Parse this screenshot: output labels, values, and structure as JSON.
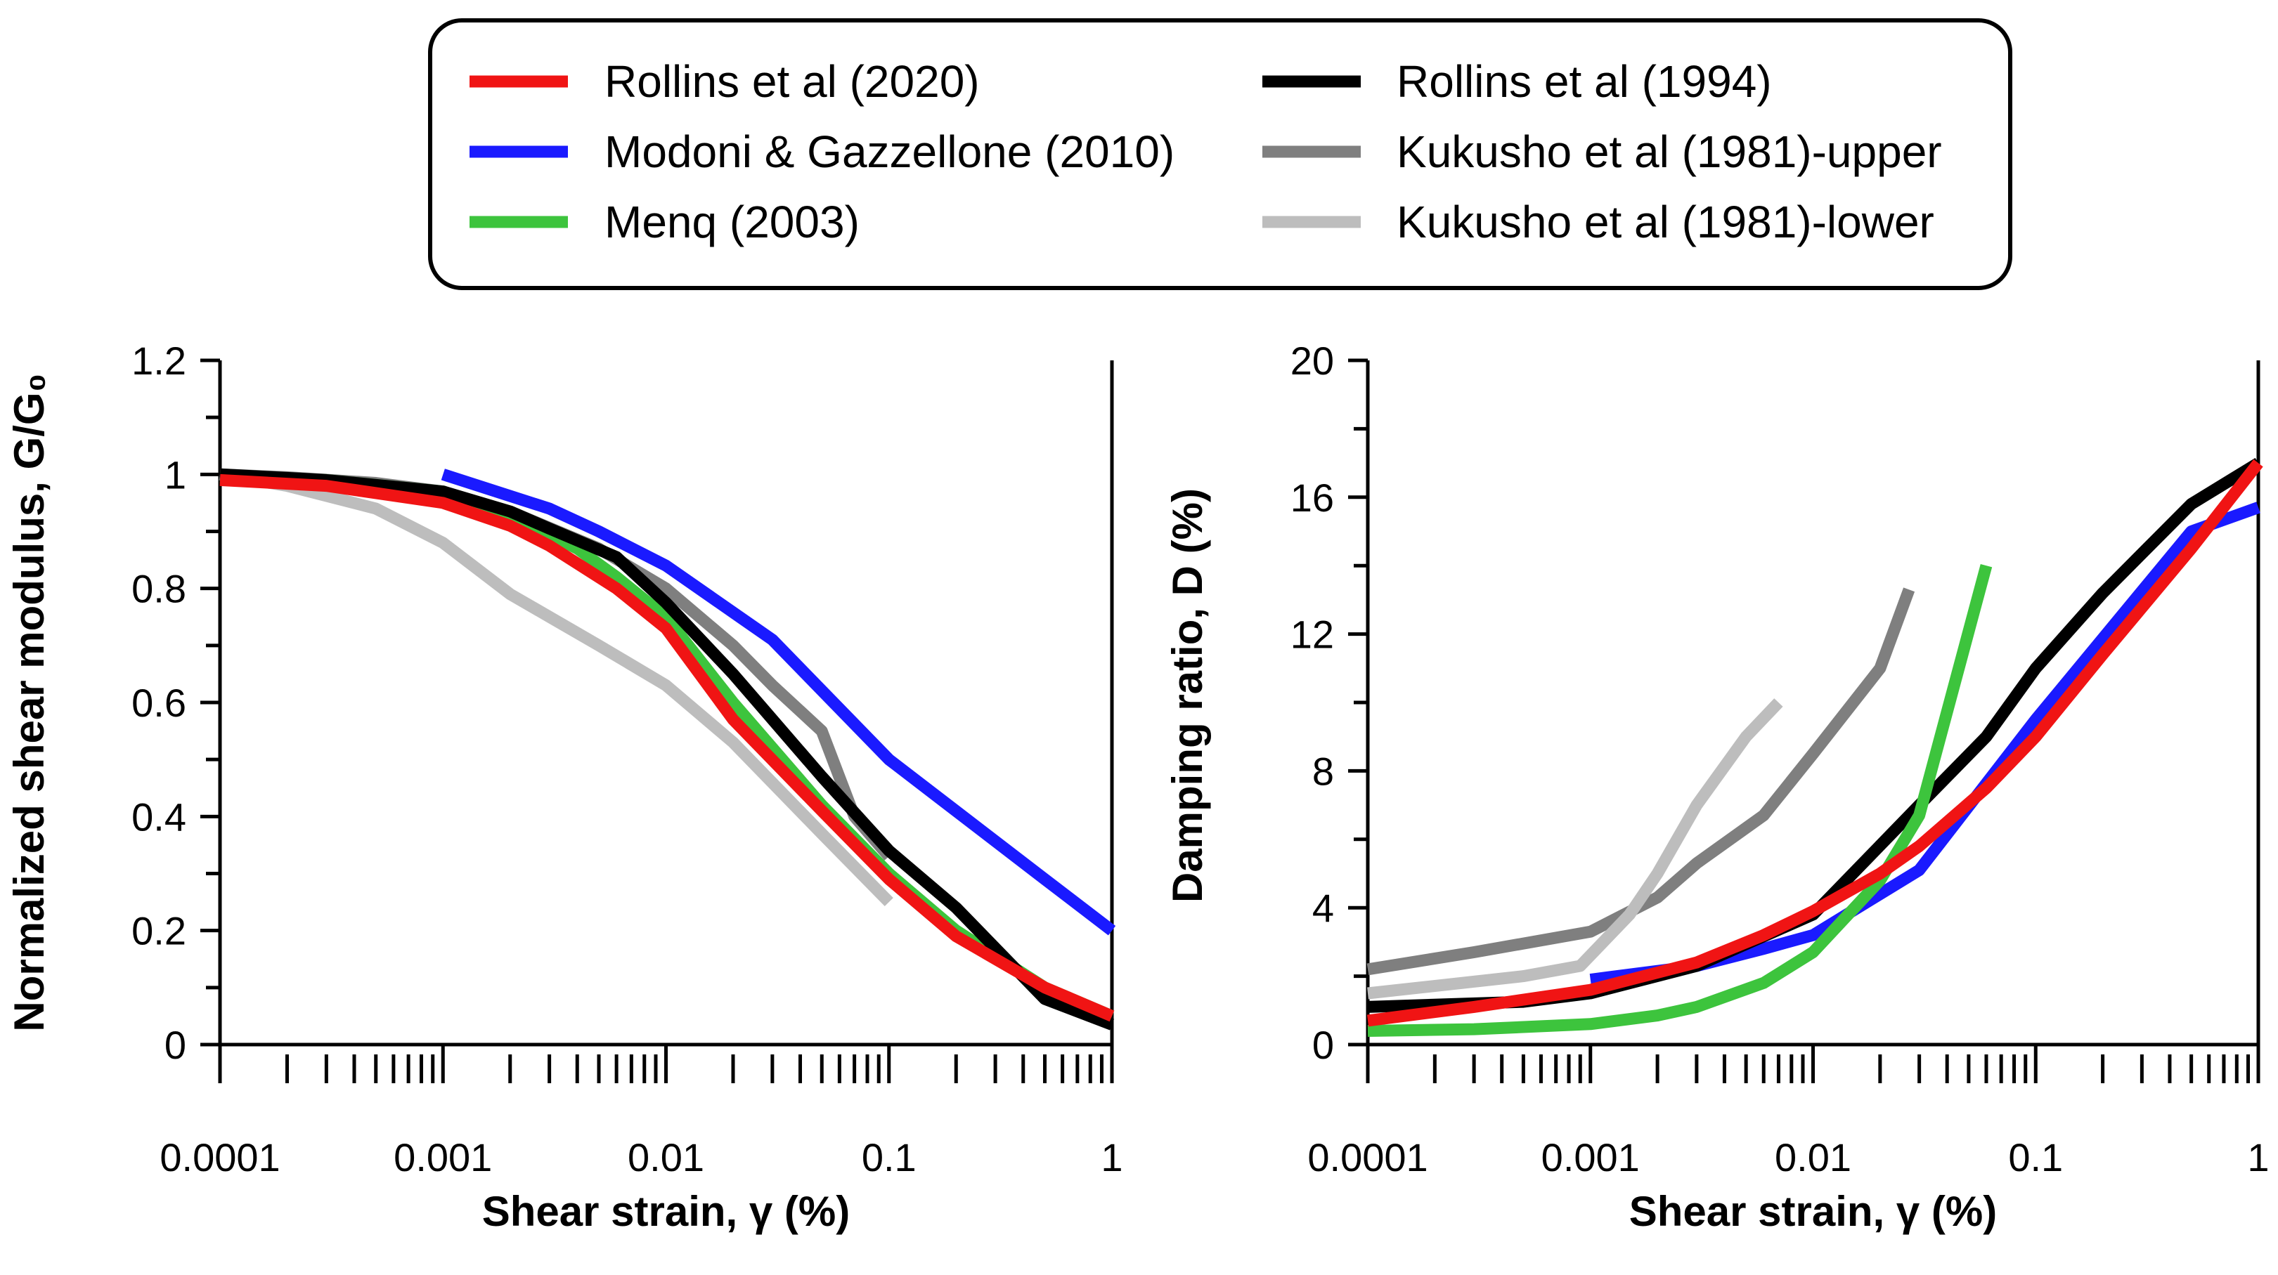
{
  "legend": {
    "entries": [
      {
        "label": "Rollins et al (2020)",
        "color": "#f01414"
      },
      {
        "label": "Modoni & Gazzellone (2010)",
        "color": "#1a1aff"
      },
      {
        "label": "Menq (2003)",
        "color": "#3dc43d"
      },
      {
        "label": "Rollins et al (1994)",
        "color": "#000000"
      },
      {
        "label": "Kukusho et al (1981)-upper",
        "color": "#7f7f7f"
      },
      {
        "label": "Kukusho et al (1981)-lower",
        "color": "#bdbdbd"
      }
    ]
  },
  "chart_data": [
    {
      "type": "line",
      "xlabel": "Shear strain, γ (%)",
      "ylabel": "Normalized shear modulus, G/G₀",
      "x_scale": "log",
      "xlim": [
        0.0001,
        1
      ],
      "ylim": [
        0,
        1.2
      ],
      "x_tick_labels": [
        "0.0001",
        "0.001",
        "0.01",
        "0.1",
        "1"
      ],
      "y_tick_labels": [
        "0",
        "0.2",
        "0.4",
        "0.6",
        "0.8",
        "1",
        "1.2"
      ],
      "y_ticks": [
        0,
        0.2,
        0.4,
        0.6,
        0.8,
        1,
        1.2
      ],
      "grid": false,
      "series": [
        {
          "name": "Kukusho et al (1981)-lower",
          "color": "#bdbdbd",
          "x": [
            0.0001,
            0.0002,
            0.0005,
            0.001,
            0.002,
            0.005,
            0.01,
            0.02,
            0.05,
            0.1
          ],
          "y": [
            1.0,
            0.98,
            0.94,
            0.88,
            0.79,
            0.7,
            0.63,
            0.53,
            0.37,
            0.25
          ]
        },
        {
          "name": "Kukusho et al (1981)-upper",
          "color": "#7f7f7f",
          "x": [
            0.0001,
            0.0002,
            0.0005,
            0.001,
            0.002,
            0.005,
            0.01,
            0.02,
            0.03,
            0.05,
            0.07,
            0.1
          ],
          "y": [
            1.0,
            0.995,
            0.985,
            0.97,
            0.935,
            0.87,
            0.8,
            0.7,
            0.63,
            0.55,
            0.4,
            0.33
          ]
        },
        {
          "name": "Menq (2003)",
          "color": "#3dc43d",
          "x": [
            0.0001,
            0.0003,
            0.001,
            0.002,
            0.004,
            0.006,
            0.01,
            0.02,
            0.05,
            0.1,
            0.2,
            0.5,
            1
          ],
          "y": [
            0.995,
            0.99,
            0.97,
            0.93,
            0.87,
            0.82,
            0.75,
            0.6,
            0.42,
            0.3,
            0.2,
            0.1,
            0.05
          ]
        },
        {
          "name": "Rollins et al (1994)",
          "color": "#000000",
          "x": [
            0.0001,
            0.0003,
            0.001,
            0.002,
            0.003,
            0.006,
            0.01,
            0.02,
            0.05,
            0.1,
            0.2,
            0.5,
            1
          ],
          "y": [
            1.0,
            0.99,
            0.97,
            0.935,
            0.905,
            0.855,
            0.775,
            0.65,
            0.47,
            0.34,
            0.24,
            0.08,
            0.035
          ]
        },
        {
          "name": "Modoni & Gazzellone (2010)",
          "color": "#1a1aff",
          "x": [
            0.001,
            0.003,
            0.005,
            0.01,
            0.03,
            0.1,
            0.5,
            1
          ],
          "y": [
            1.0,
            0.94,
            0.9,
            0.84,
            0.71,
            0.5,
            0.29,
            0.2
          ]
        },
        {
          "name": "Rollins et al (2020)",
          "color": "#f01414",
          "x": [
            0.0001,
            0.0003,
            0.001,
            0.002,
            0.003,
            0.006,
            0.01,
            0.02,
            0.05,
            0.1,
            0.2,
            0.5,
            1
          ],
          "y": [
            0.99,
            0.98,
            0.95,
            0.91,
            0.875,
            0.8,
            0.73,
            0.57,
            0.41,
            0.29,
            0.19,
            0.1,
            0.05
          ]
        }
      ]
    },
    {
      "type": "line",
      "xlabel": "Shear strain, γ (%)",
      "ylabel": "Damping ratio, D (%)",
      "x_scale": "log",
      "xlim": [
        0.0001,
        1
      ],
      "ylim": [
        0,
        20
      ],
      "x_tick_labels": [
        "0.0001",
        "0.001",
        "0.01",
        "0.1",
        "1"
      ],
      "y_tick_labels": [
        "0",
        "4",
        "8",
        "12",
        "16",
        "20"
      ],
      "y_ticks": [
        0,
        4,
        8,
        12,
        16,
        20
      ],
      "grid": false,
      "series": [
        {
          "name": "Kukusho et al (1981)-upper",
          "color": "#7f7f7f",
          "x": [
            0.0001,
            0.0003,
            0.001,
            0.002,
            0.003,
            0.006,
            0.01,
            0.02,
            0.027
          ],
          "y": [
            2.2,
            2.7,
            3.3,
            4.3,
            5.3,
            6.7,
            8.5,
            11.0,
            13.3
          ]
        },
        {
          "name": "Kukusho et al (1981)-lower",
          "color": "#bdbdbd",
          "x": [
            0.0001,
            0.0005,
            0.0009,
            0.0015,
            0.002,
            0.003,
            0.005,
            0.007
          ],
          "y": [
            1.5,
            2.0,
            2.3,
            3.8,
            5.0,
            7.0,
            9.0,
            10.0
          ]
        },
        {
          "name": "Modoni & Gazzellone (2010)",
          "color": "#1a1aff",
          "x": [
            0.001,
            0.003,
            0.006,
            0.01,
            0.03,
            0.1,
            0.5,
            1
          ],
          "y": [
            1.9,
            2.3,
            2.8,
            3.2,
            5.1,
            9.5,
            15.0,
            15.7
          ]
        },
        {
          "name": "Rollins et al (1994)",
          "color": "#000000",
          "x": [
            0.0001,
            0.0005,
            0.001,
            0.003,
            0.01,
            0.03,
            0.06,
            0.1,
            0.2,
            0.5,
            1
          ],
          "y": [
            1.1,
            1.25,
            1.5,
            2.3,
            3.8,
            7.0,
            9.0,
            11.0,
            13.2,
            15.8,
            17.0
          ]
        },
        {
          "name": "Menq (2003)",
          "color": "#3dc43d",
          "x": [
            0.0001,
            0.0003,
            0.001,
            0.002,
            0.003,
            0.006,
            0.01,
            0.02,
            0.03,
            0.06
          ],
          "y": [
            0.4,
            0.45,
            0.6,
            0.85,
            1.1,
            1.8,
            2.7,
            4.8,
            6.7,
            14.0
          ]
        },
        {
          "name": "Rollins et al (2020)",
          "color": "#f01414",
          "x": [
            0.0001,
            0.0003,
            0.001,
            0.003,
            0.006,
            0.01,
            0.02,
            0.03,
            0.06,
            0.1,
            0.2,
            0.5,
            1
          ],
          "y": [
            0.7,
            1.1,
            1.6,
            2.4,
            3.2,
            3.9,
            5.0,
            5.8,
            7.5,
            9.0,
            11.4,
            14.5,
            17.0
          ]
        }
      ]
    }
  ]
}
